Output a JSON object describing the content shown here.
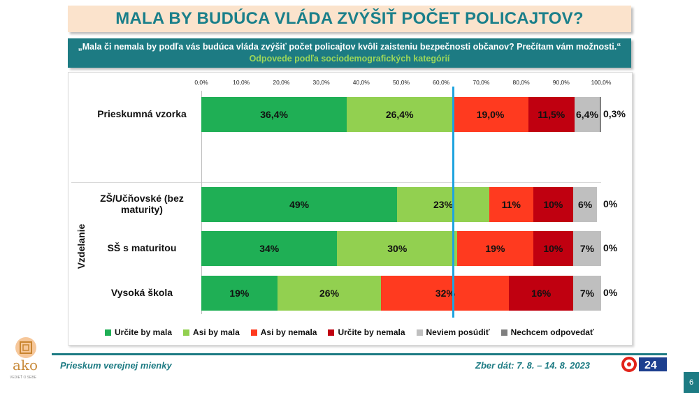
{
  "title": "MALA BY BUDÚCA VLÁDA ZVÝŠIŤ POČET POLICAJTOV?",
  "question": "„Mala či nemala by podľa vás budúca vláda zvýšiť počet policajtov kvôli zaisteniu bezpečnosti občanov? Prečítam vám možnosti.“",
  "subtitle": "Odpovede podľa sociodemografických kategórií",
  "chart_data": {
    "type": "bar",
    "orientation": "horizontal-stacked",
    "x_ticks": [
      "0,0%",
      "10,0%",
      "20,0%",
      "30,0%",
      "40,0%",
      "50,0%",
      "60,0%",
      "70,0%",
      "80,0%",
      "90,0%",
      "100,0%"
    ],
    "xlim": [
      0,
      100
    ],
    "group_label": "Vzdelanie",
    "reference_line_value": 63,
    "series": [
      {
        "name": "Určite by mala",
        "color": "#1faf55"
      },
      {
        "name": "Asi by mala",
        "color": "#92d050"
      },
      {
        "name": "Asi by nemala",
        "color": "#ff3a1f"
      },
      {
        "name": "Určite by nemala",
        "color": "#c00010"
      },
      {
        "name": "Neviem posúdiť",
        "color": "#bfbfbf"
      },
      {
        "name": "Nechcem odpovedať",
        "color": "#7f7f7f"
      }
    ],
    "rows": [
      {
        "label": "Prieskumná vzorka",
        "values": [
          36.4,
          26.4,
          19.0,
          11.5,
          6.4,
          0.3
        ],
        "labels": [
          "36,4%",
          "26,4%",
          "19,0%",
          "11,5%",
          "6,4%",
          "0,3%"
        ]
      },
      {
        "label": "ZŠ/Učňovské (bez maturity)",
        "values": [
          49,
          23,
          11,
          10,
          6,
          0
        ],
        "labels": [
          "49%",
          "23%",
          "11%",
          "10%",
          "6%",
          "0%"
        ]
      },
      {
        "label": "SŠ s maturitou",
        "values": [
          34,
          30,
          19,
          10,
          7,
          0
        ],
        "labels": [
          "34%",
          "30%",
          "19%",
          "10%",
          "7%",
          "0%"
        ]
      },
      {
        "label": "Vysoká škola",
        "values": [
          19,
          26,
          32,
          16,
          7,
          0
        ],
        "labels": [
          "19%",
          "26%",
          "32%",
          "16%",
          "7%",
          "0%"
        ]
      }
    ]
  },
  "footer": {
    "left": "Prieskum verejnej mienky",
    "right": "Zber dát: 7. 8. – 14. 8. 2023",
    "page": "6",
    "logo_text": "ako",
    "logo_sub": "VEDIEŤ O SEBE",
    "tv_logo": "24"
  }
}
